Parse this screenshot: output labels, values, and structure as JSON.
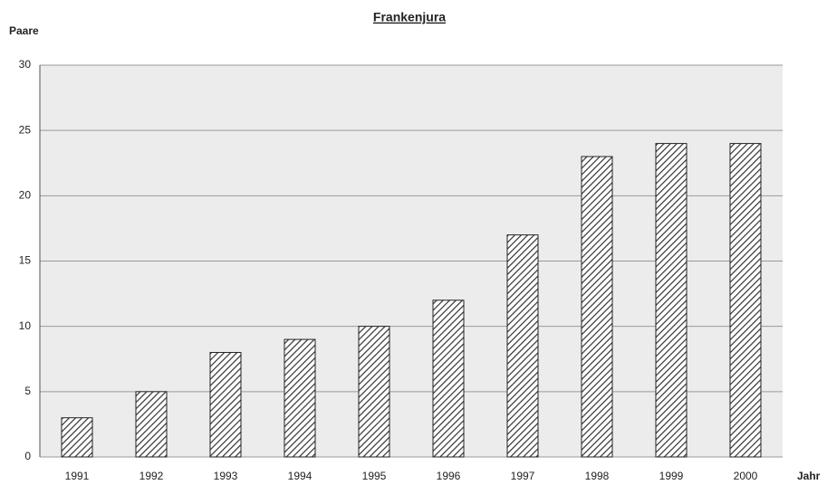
{
  "chart_data": {
    "type": "bar",
    "title": "Frankenjura",
    "y_label": "Paare",
    "x_label": "Jahr",
    "categories": [
      "1991",
      "1992",
      "1993",
      "1994",
      "1995",
      "1996",
      "1997",
      "1998",
      "1999",
      "2000"
    ],
    "values": [
      3,
      5,
      8,
      9,
      10,
      12,
      17,
      23,
      24,
      24
    ],
    "color": "#333333",
    "ylim": [
      0,
      30
    ],
    "yticks": [
      0,
      5,
      10,
      15,
      20,
      25,
      30
    ],
    "grid": true
  }
}
